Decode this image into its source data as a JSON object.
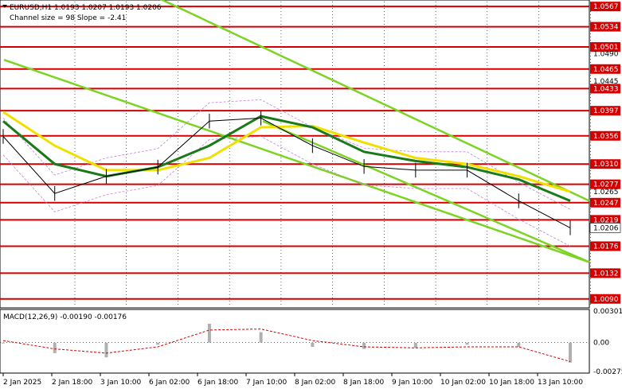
{
  "header": {
    "symbol_line": "EURUSD,H1  1.0193 1.0207 1.0193 1.0206",
    "channel_line": "Channel size = 98 Slope = -2.41"
  },
  "macd": {
    "label": "MACD(12,26,9) -0.00190 -0.00176",
    "ticks": [
      "0.00301",
      "0.00",
      "-0.00275"
    ]
  },
  "price_axis": {
    "red_levels": [
      "1.0567",
      "1.0534",
      "1.0501",
      "1.0465",
      "1.0433",
      "1.0397",
      "1.0356",
      "1.0310",
      "1.0277",
      "1.0247",
      "1.0219",
      "1.0176",
      "1.0132",
      "1.0090"
    ],
    "plain_ticks": [
      "1.0490",
      "1.0445",
      "1.0265",
      "1.0265"
    ],
    "current_price": "1.0206"
  },
  "x_axis": {
    "labels": [
      "2 Jan 2025",
      "2 Jan 18:00",
      "3 Jan 10:00",
      "6 Jan 02:00",
      "6 Jan 18:00",
      "7 Jan 10:00",
      "8 Jan 02:00",
      "8 Jan 18:00",
      "9 Jan 10:00",
      "10 Jan 02:00",
      "10 Jan 18:00",
      "13 Jan 10:00"
    ]
  },
  "colors": {
    "level_line": "#d40000",
    "channel": "#7cd422",
    "ma_fast": "#1a7a1a",
    "ma_slow": "#f0e000",
    "bollinger": "#c080e0",
    "macd_hist": "#b0b0b0",
    "macd_signal": "#d40000"
  },
  "chart_data": {
    "type": "line",
    "title": "EURUSD,H1",
    "ylim": [
      1.0078,
      1.0575
    ],
    "x": [
      "2 Jan 2025",
      "2 Jan 18:00",
      "3 Jan 10:00",
      "6 Jan 02:00",
      "6 Jan 18:00",
      "7 Jan 10:00",
      "8 Jan 02:00",
      "8 Jan 18:00",
      "9 Jan 10:00",
      "10 Jan 02:00",
      "10 Jan 18:00",
      "13 Jan 10:00"
    ],
    "series": [
      {
        "values": [
          1.0355,
          1.0262,
          1.029,
          1.0305,
          1.038,
          1.0385,
          1.034,
          1.0306,
          1.03,
          1.03,
          1.025,
          1.0206
        ]
      },
      {
        "values": [
          1.038,
          1.031,
          1.029,
          1.0305,
          1.034,
          1.0388,
          1.037,
          1.033,
          1.0315,
          1.0305,
          1.0285,
          1.025
        ]
      },
      {
        "values": [
          1.0395,
          1.034,
          1.03,
          1.03,
          1.032,
          1.037,
          1.0372,
          1.0345,
          1.032,
          1.031,
          1.029,
          1.0265
        ]
      }
    ],
    "levels": [
      1.0567,
      1.0534,
      1.0501,
      1.0465,
      1.0433,
      1.0397,
      1.0356,
      1.031,
      1.0277,
      1.0247,
      1.0219,
      1.0176,
      1.0132,
      1.009
    ],
    "macd": {
      "ylim": [
        -0.00275,
        0.00301
      ],
      "histogram": [
        0.0,
        -0.001,
        -0.0014,
        -0.0002,
        0.0018,
        0.001,
        -0.0004,
        -0.0006,
        -0.0005,
        -0.0002,
        -0.0004,
        -0.0019
      ],
      "signal": [
        0.0002,
        -0.0006,
        -0.001,
        -0.0004,
        0.0012,
        0.0013,
        0.0002,
        -0.0004,
        -0.0005,
        -0.0004,
        -0.0004,
        -0.0018
      ]
    }
  }
}
